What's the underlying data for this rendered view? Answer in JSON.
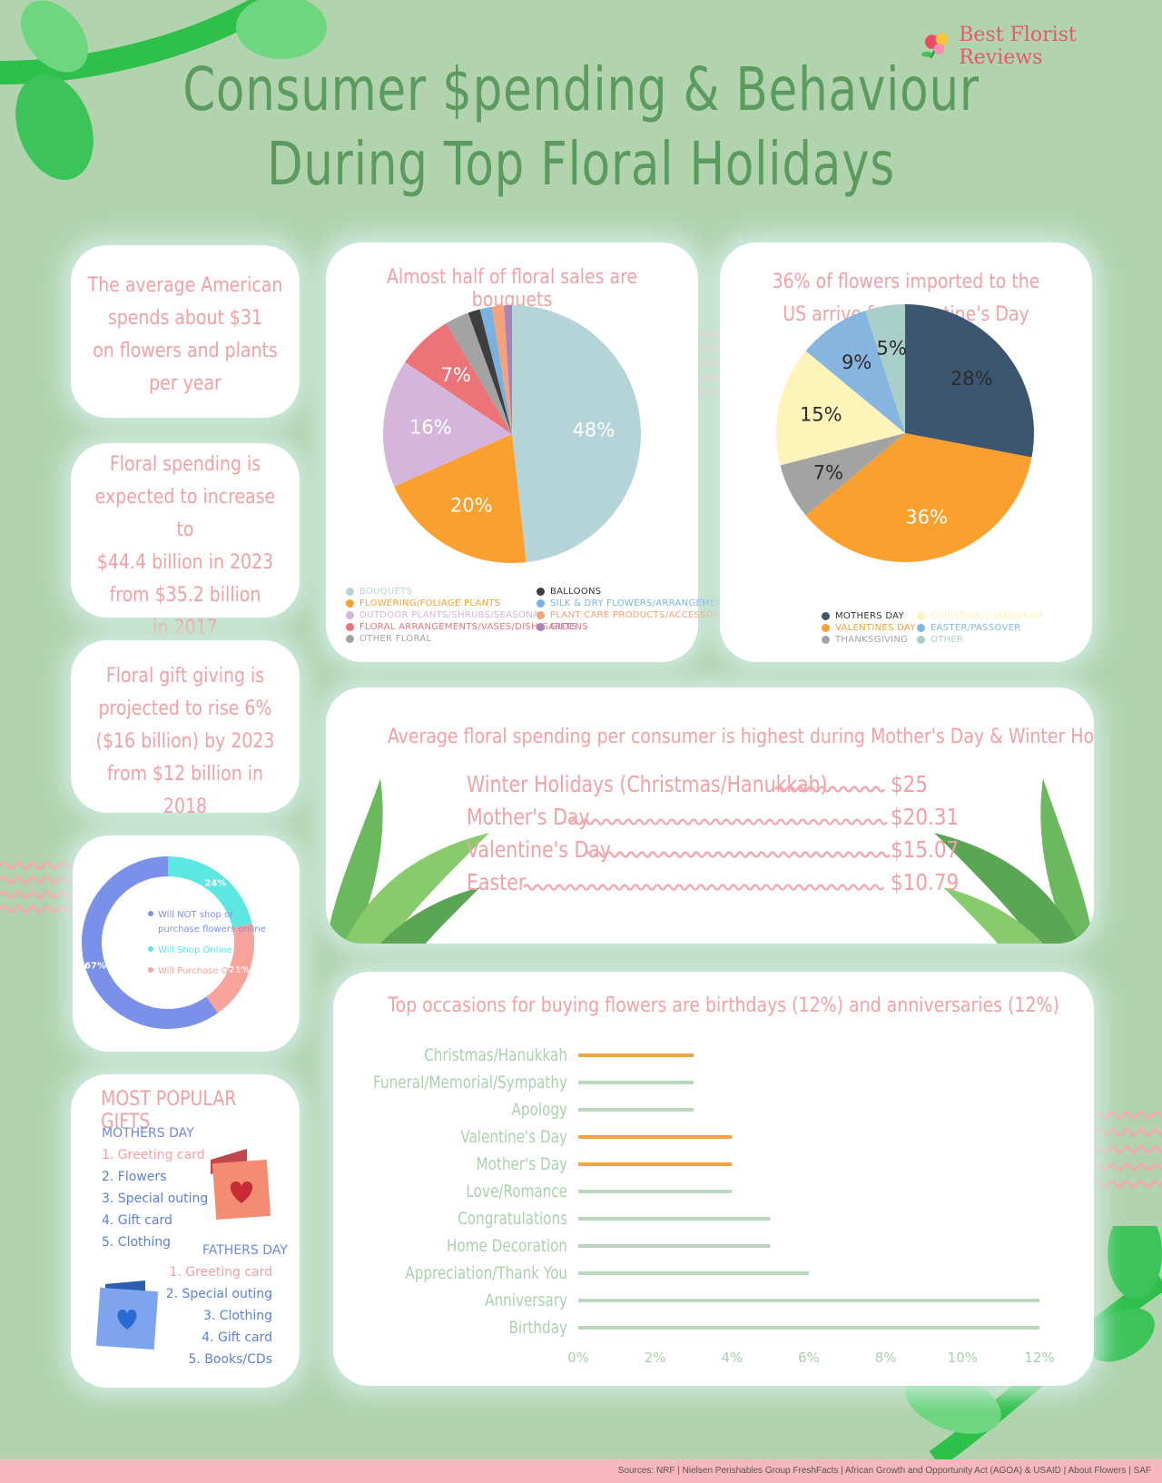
{
  "header": {
    "title_line1": "Consumer $pending & Behaviour",
    "title_line2": "During Top Floral Holidays",
    "brand": "Best Florist Reviews"
  },
  "facts": [
    {
      "lines": [
        "The average American",
        "spends about $31",
        "on flowers and plants",
        "per year"
      ]
    },
    {
      "lines": [
        "Floral spending is",
        "expected to increase to",
        "$44.4 billion in 2023",
        "from $35.2 billion",
        "in 2017"
      ]
    },
    {
      "lines": [
        "Floral gift giving is",
        "projected to rise 6%",
        "($16 billion) by 2023",
        "from $12 billion in 2018"
      ]
    }
  ],
  "gifts": {
    "title": "MOST POPULAR GIFTS",
    "mothers_title": "MOTHERS DAY",
    "mothers": [
      "1. Greeting card",
      "2. Flowers",
      "3. Special outing",
      "4. Gift card",
      "5. Clothing"
    ],
    "fathers_title": "FATHERS DAY",
    "fathers": [
      "1. Greeting card",
      "2. Special outing",
      "3. Clothing",
      "4. Gift card",
      "5. Books/CDs"
    ]
  },
  "spending": {
    "title": "Average floral spending per consumer is highest during Mother's Day & Winter Holidays",
    "rows": [
      {
        "label": "Winter Holidays (Christmas/Hanukkah)",
        "value": "$25"
      },
      {
        "label": "Mother's Day",
        "value": "$20.31"
      },
      {
        "label": "Valentine's Day",
        "value": "$15.07"
      },
      {
        "label": "Easter",
        "value": "$10.79"
      }
    ]
  },
  "footer": {
    "sources": "Sources: NRF | Nielsen Perishables Group FreshFacts | African Growth and Opportunity Act (AGOA) & USAID | About Flowers | SAF"
  },
  "chart_data": [
    {
      "type": "pie",
      "title": "Almost half of floral sales are bouquets",
      "slices": [
        {
          "label": "BOUQUETS",
          "value": 48,
          "color": "#b5d4d8",
          "display": "48%"
        },
        {
          "label": "FLOWERING/FOLIAGE PLANTS",
          "value": 20,
          "color": "#f9a02f",
          "display": "20%"
        },
        {
          "label": "OUTDOOR PLANTS/SHRUBS/SEASONAL",
          "value": 16,
          "color": "#d5b5dc",
          "display": "16%"
        },
        {
          "label": "FLORAL ARRANGEMENTS/VASES/DISH GARDENS",
          "value": 7,
          "color": "#ec7478",
          "display": "7%"
        },
        {
          "label": "OTHER FLORAL",
          "value": 3,
          "color": "#a3a3a3",
          "display": ""
        },
        {
          "label": "BALLOONS",
          "value": 1.5,
          "color": "#3e3e3e",
          "display": ""
        },
        {
          "label": "SILK & DRY FLOWERS/ARRANGEMENTS",
          "value": 1.5,
          "color": "#7ab1e0",
          "display": ""
        },
        {
          "label": "PLANT CARE PRODUCTS/ACCESSORIES",
          "value": 1.5,
          "color": "#f4a27c",
          "display": ""
        },
        {
          "label": "GIFTS",
          "value": 1,
          "color": "#a982b8",
          "display": ""
        }
      ],
      "legend": [
        {
          "label": "BOUQUETS",
          "color": "#b5d4d8"
        },
        {
          "label": "FLOWERING/FOLIAGE PLANTS",
          "color": "#f9a02f"
        },
        {
          "label": "OUTDOOR PLANTS/SHRUBS/SEASONAL",
          "color": "#d5b5dc"
        },
        {
          "label": "FLORAL ARRANGEMENTS/VASES/DISH GARDENS",
          "color": "#ec7478"
        },
        {
          "label": "OTHER FLORAL",
          "color": "#a3a3a3"
        },
        {
          "label": "BALLOONS",
          "color": "#3e3e3e"
        },
        {
          "label": "SILK & DRY FLOWERS/ARRANGEMENTS",
          "color": "#7ab1e0"
        },
        {
          "label": "PLANT CARE PRODUCTS/ACCESSORIES",
          "color": "#f4a27c"
        },
        {
          "label": "GIFTS",
          "color": "#a982b8"
        }
      ]
    },
    {
      "type": "pie",
      "title": "36% of flowers imported to the US arrive for Valentine's Day",
      "slices": [
        {
          "label": "MOTHERS DAY",
          "value": 28,
          "color": "#3d5670",
          "display": "28%"
        },
        {
          "label": "VALENTINES DAY",
          "value": 36,
          "color": "#f9a02f",
          "display": "36%"
        },
        {
          "label": "THANKSGIVING",
          "value": 7,
          "color": "#a3a3a3",
          "display": "7%"
        },
        {
          "label": "CHRISTMAS/HANUKKAH",
          "value": 15,
          "color": "#fef3b8",
          "display": "15%"
        },
        {
          "label": "EASTER/PASSOVER",
          "value": 9,
          "color": "#86b5e0",
          "display": "9%"
        },
        {
          "label": "OTHER",
          "value": 5,
          "color": "#aacfcb",
          "display": "5%"
        }
      ],
      "legend": [
        {
          "label": "MOTHERS DAY",
          "color": "#3d5670"
        },
        {
          "label": "VALENTINES DAY",
          "color": "#f9a02f"
        },
        {
          "label": "THANKSGIVING",
          "color": "#a3a3a3"
        },
        {
          "label": "CHRISTMAS/HANUKKAH",
          "color": "#fef3b8"
        },
        {
          "label": "EASTER/PASSOVER",
          "color": "#86b5e0"
        },
        {
          "label": "OTHER",
          "color": "#aacfcb"
        }
      ]
    },
    {
      "type": "pie",
      "title": "",
      "slices": [
        {
          "label": "Will Shop Online",
          "value": 24,
          "color": "#5ce7e3",
          "display": "24%"
        },
        {
          "label": "Will Purchase Online",
          "value": 21,
          "color": "#f8a39b",
          "display": "21%"
        },
        {
          "label": "Will NOT shop or purchase flowers online",
          "value": 67,
          "color": "#7b90e8",
          "display": "67%"
        }
      ],
      "legend": [
        {
          "label": "Will NOT shop or purchase flowers online",
          "color": "#7b90e8"
        },
        {
          "label": "Will Shop Online",
          "color": "#5ce7e3"
        },
        {
          "label": "Will Purchase Online",
          "color": "#f8a39b"
        }
      ]
    },
    {
      "type": "bar",
      "orientation": "horizontal",
      "title": "Top occasions for buying  flowers are birthdays (12%) and anniversaries (12%)",
      "categories": [
        "Christmas/Hanukkah",
        "Funeral/Memorial/Sympathy",
        "Apology",
        "Valentine's Day",
        "Mother's Day",
        "Love/Romance",
        "Congratulations",
        "Home Decoration",
        "Appreciation/Thank You",
        "Anniversary",
        "Birthday"
      ],
      "values": [
        3,
        3,
        3,
        4,
        4,
        4,
        5,
        5,
        6,
        12,
        12
      ],
      "highlight": [
        true,
        false,
        false,
        true,
        true,
        false,
        false,
        false,
        false,
        false,
        false
      ],
      "highlight_color": "#f0a245",
      "base_color": "#b9d8be",
      "xlim": [
        0,
        12
      ],
      "xticks": [
        "0%",
        "2%",
        "4%",
        "6%",
        "8%",
        "10%",
        "12%"
      ]
    }
  ]
}
